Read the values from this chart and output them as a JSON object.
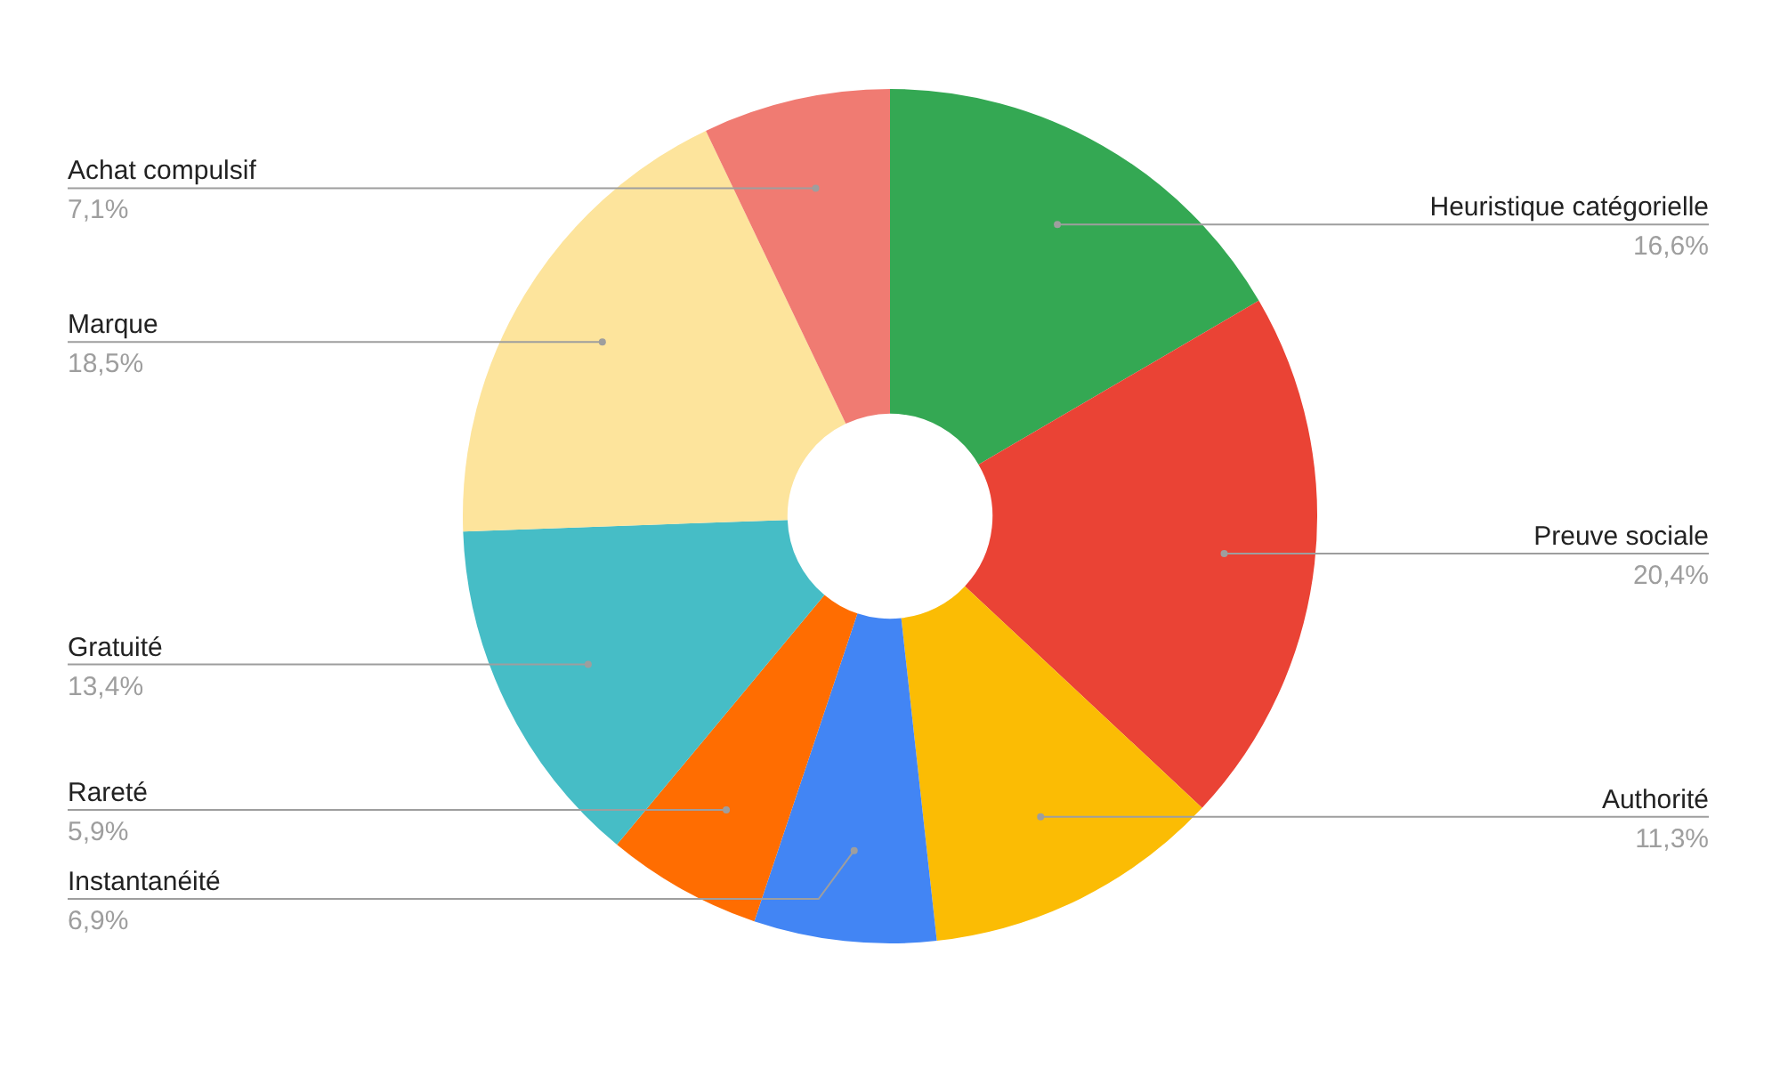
{
  "chart_data": {
    "type": "donut",
    "categories": [
      "Heuristique catégorielle",
      "Preuve sociale",
      "Authorité",
      "Instantanéité",
      "Rareté",
      "Gratuité",
      "Marque",
      "Achat compulsif"
    ],
    "values": [
      16.6,
      20.4,
      11.3,
      6.9,
      5.9,
      13.4,
      18.5,
      7.1
    ],
    "value_labels": [
      "16,6%",
      "20,4%",
      "11,3%",
      "6,9%",
      "5,9%",
      "13,4%",
      "18,5%",
      "7,1%"
    ],
    "colors": [
      "#34a853",
      "#ea4335",
      "#fbbc04",
      "#4285f4",
      "#ff6d01",
      "#46bdc6",
      "#fde49c",
      "#f07b72"
    ]
  }
}
